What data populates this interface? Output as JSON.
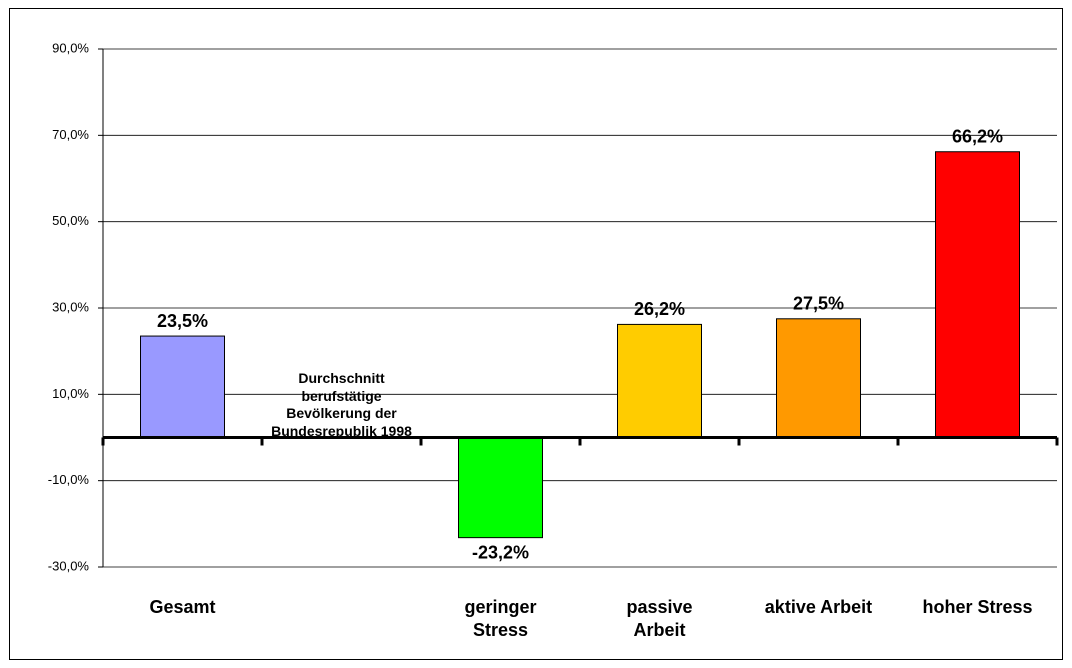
{
  "chart_data": {
    "type": "bar",
    "categories": [
      "Gesamt",
      null,
      "geringer\nStress",
      "passive\nArbeit",
      "aktive Arbeit",
      "hoher Stress"
    ],
    "values": [
      23.5,
      null,
      -23.2,
      26.2,
      27.5,
      66.2
    ],
    "value_labels": [
      "23,5%",
      null,
      "-23,2%",
      "26,2%",
      "27,5%",
      "66,2%"
    ],
    "colors": [
      "#9999ff",
      null,
      "#00ff00",
      "#ffcc00",
      "#ff9900",
      "#ff0000"
    ],
    "annotation": "Durchschnitt\nberufstätige\nBevölkerung der\nBundesrepublik 1998",
    "ylim": [
      -30,
      90
    ],
    "yticks": [
      {
        "value": -30,
        "label": "-30,0%"
      },
      {
        "value": -10,
        "label": "-10,0%"
      },
      {
        "value": 10,
        "label": "10,0%"
      },
      {
        "value": 30,
        "label": "30,0%"
      },
      {
        "value": 50,
        "label": "50,0%"
      },
      {
        "value": 70,
        "label": "70,0%"
      },
      {
        "value": 90,
        "label": "90,0%"
      }
    ],
    "grid": true
  }
}
